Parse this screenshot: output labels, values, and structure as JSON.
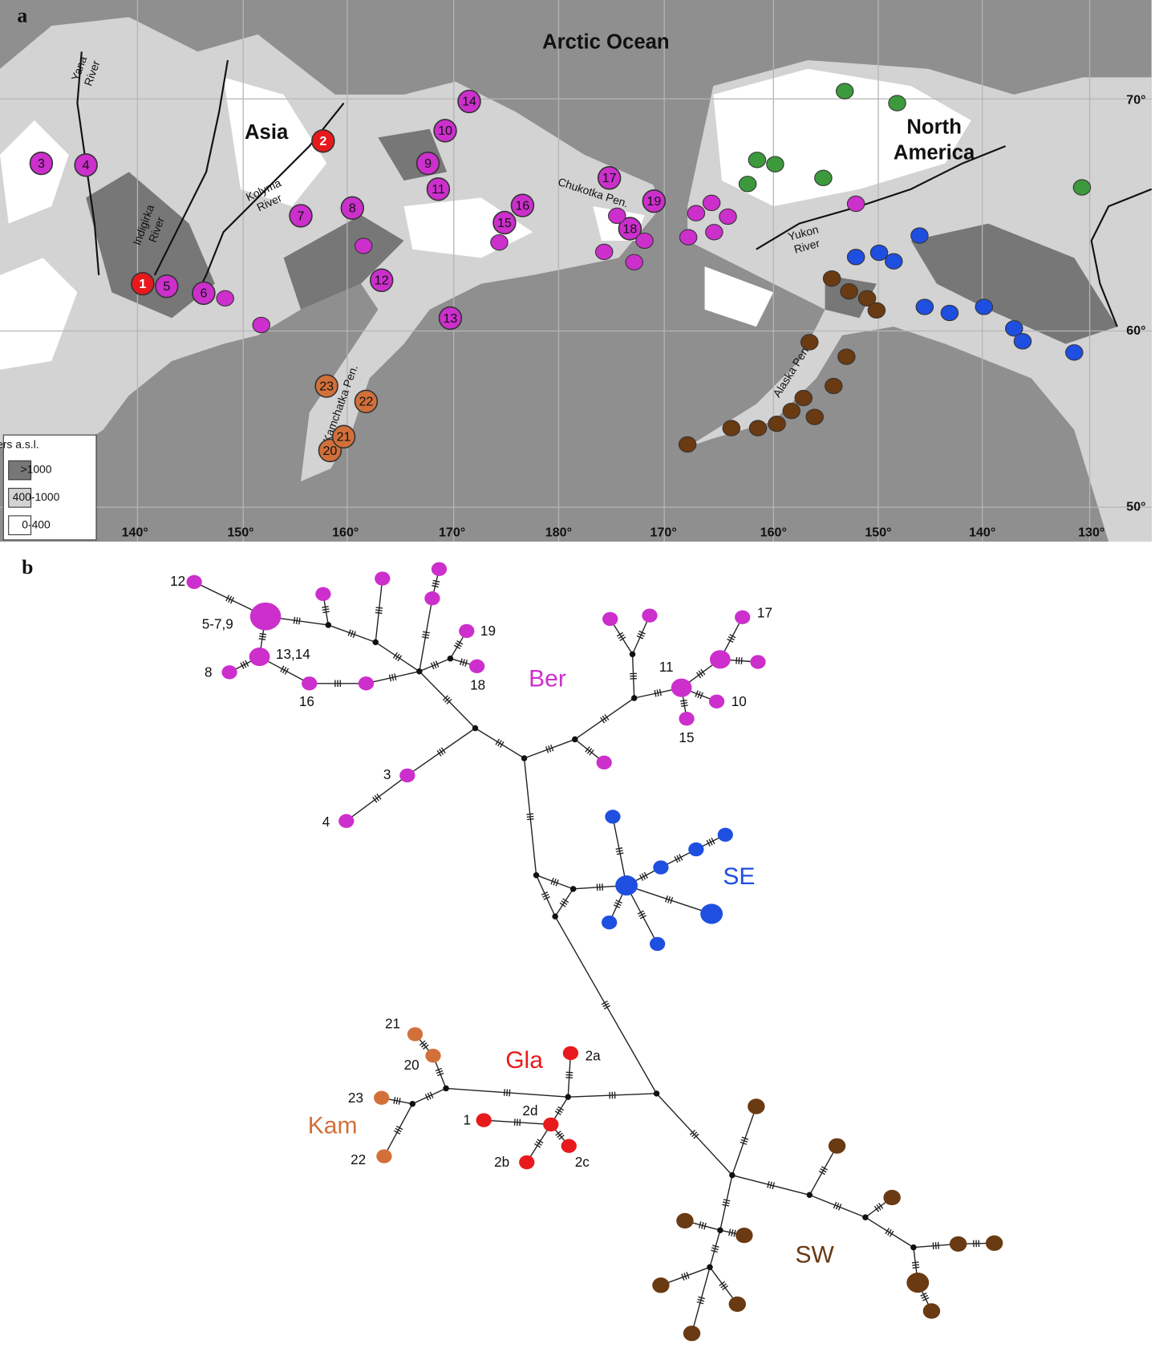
{
  "panel_a": {
    "label": "a",
    "place_names": [
      "Arctic Ocean",
      "Asia",
      "North",
      "America",
      "Chukotka Pen.",
      "Kamchatka Pen.",
      "Alaska Pen."
    ],
    "rivers": [
      [
        "Yana",
        "River"
      ],
      [
        "Indigirka",
        "River"
      ],
      [
        "Kolyma",
        "River"
      ],
      [
        "Yukon",
        "River"
      ]
    ],
    "latitudes": [
      "70°",
      "60°",
      "50°"
    ],
    "longitudes": [
      "140°",
      "150°",
      "160°",
      "170°",
      "180°",
      "170°",
      "160°",
      "150°",
      "140°",
      "130°"
    ],
    "legend": {
      "title": "meters a.s.l.",
      "items": [
        ">1000",
        "400-1000",
        "0-400"
      ]
    },
    "sites": [
      "1",
      "2",
      "3",
      "4",
      "5",
      "6",
      "7",
      "8",
      "9",
      "10",
      "11",
      "12",
      "13",
      "14",
      "15",
      "16",
      "17",
      "18",
      "19",
      "20",
      "21",
      "22",
      "23"
    ]
  },
  "panel_b": {
    "label": "b",
    "groups": [
      "Ber",
      "SE",
      "Gla",
      "Kam",
      "SW"
    ],
    "node_labels": [
      "12",
      "5-7,9",
      "13,14",
      "8",
      "16",
      "19",
      "18",
      "3",
      "4",
      "11",
      "17",
      "10",
      "15",
      "21",
      "20",
      "23",
      "22",
      "2a",
      "1",
      "2d",
      "2b",
      "2c"
    ]
  }
}
